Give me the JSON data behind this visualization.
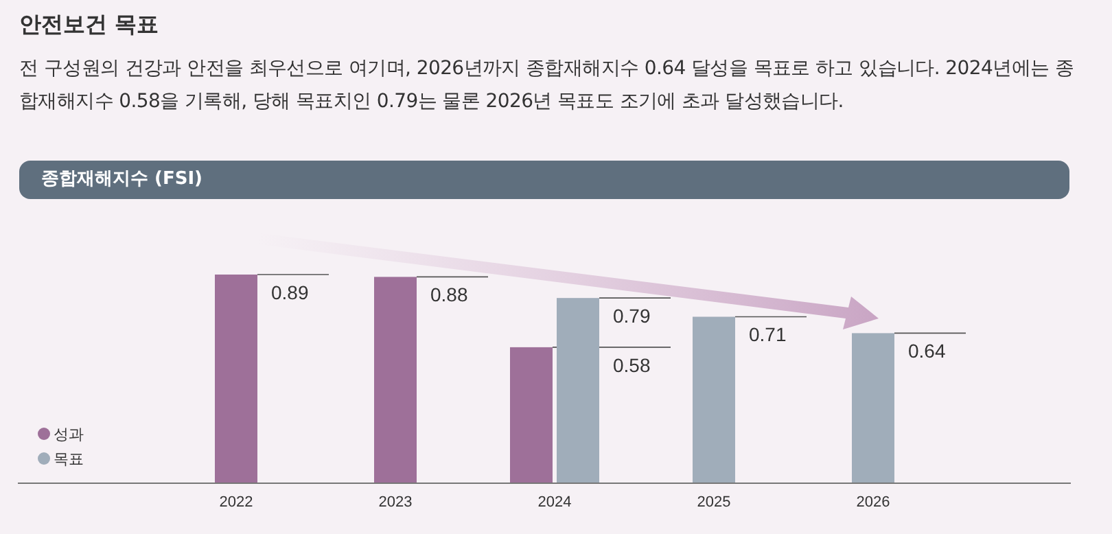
{
  "chart_data": {
    "type": "bar",
    "title": "안전보건 목표",
    "subtitle": "전 구성원의 건강과 안전을 최우선으로 여기며, 2026년까지 종합재해지수 0.64 달성을 목표로 하고 있습니다. 2024년에는 종합재해지수 0.58을 기록해, 당해 목표치인 0.79는 물론 2026년 목표도 조기에 초과 달성했습니다.",
    "annotations": [
      "종합재해지수 (FSI)"
    ],
    "categories": [
      "2022",
      "2023",
      "2024",
      "2025",
      "2026"
    ],
    "series": [
      {
        "name": "성과",
        "color": "#9e7099",
        "values": [
          0.89,
          0.88,
          0.58,
          null,
          null
        ]
      },
      {
        "name": "목표",
        "color": "#a0adba",
        "values": [
          null,
          null,
          0.79,
          0.71,
          0.64
        ]
      }
    ],
    "data_labels": true,
    "legend": "bottom left"
  }
}
